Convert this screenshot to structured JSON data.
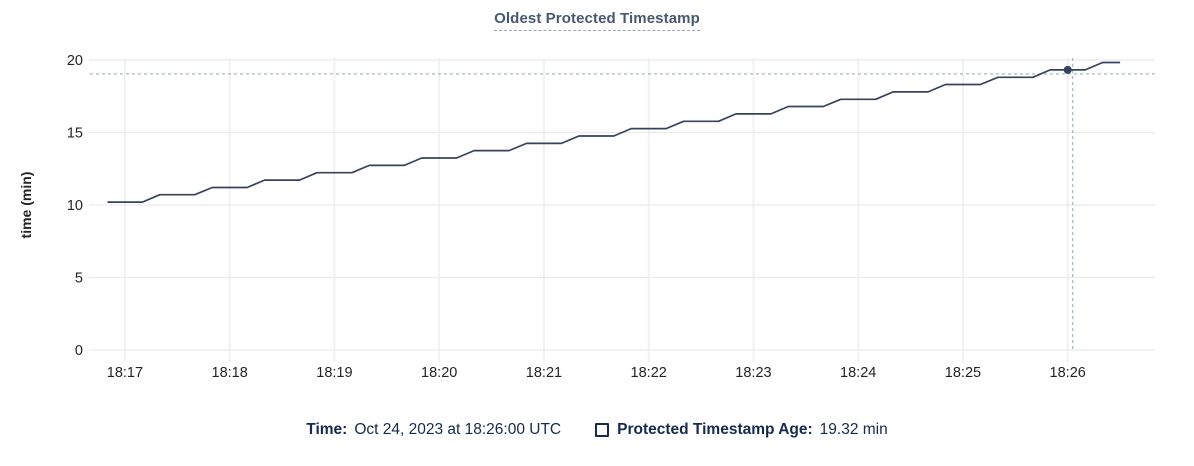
{
  "chart": {
    "title": "Oldest Protected Timestamp",
    "ylabel": "time (min)"
  },
  "legend": {
    "time_label": "Time:",
    "time_value": "Oct 24, 2023 at 18:26:00 UTC",
    "series_label": "Protected Timestamp Age:",
    "series_value": "19.32 min"
  },
  "colors": {
    "line": "#36435c",
    "title": "#475872",
    "title_underline": "#96a5ba",
    "legend_text": "#152a4c",
    "crosshair": "#a3b8c2",
    "grid_horizontal": "#ebebeb",
    "grid_vertical": "#f1f1f1",
    "tick_text": "#242424",
    "background": "#ffffff"
  },
  "chart_data": {
    "type": "line",
    "title": "Oldest Protected Timestamp",
    "xlabel": "",
    "ylabel": "time (min)",
    "ylim": [
      0,
      20
    ],
    "y_ticks": [
      0,
      5,
      10,
      15,
      20
    ],
    "x_ticks": [
      "18:17",
      "18:18",
      "18:19",
      "18:20",
      "18:21",
      "18:22",
      "18:23",
      "18:24",
      "18:25",
      "18:26"
    ],
    "x_domain": [
      "18:16:40",
      "18:26:50"
    ],
    "grid": true,
    "legend_position": "bottom",
    "series": [
      {
        "name": "Protected Timestamp Age",
        "unit": "min",
        "x": [
          "18:16:50",
          "18:17:00",
          "18:17:10",
          "18:17:20",
          "18:17:30",
          "18:17:40",
          "18:17:50",
          "18:18:00",
          "18:18:10",
          "18:18:20",
          "18:18:30",
          "18:18:40",
          "18:18:50",
          "18:19:00",
          "18:19:10",
          "18:19:20",
          "18:19:30",
          "18:19:40",
          "18:19:50",
          "18:20:00",
          "18:20:10",
          "18:20:20",
          "18:20:30",
          "18:20:40",
          "18:20:50",
          "18:21:00",
          "18:21:10",
          "18:21:20",
          "18:21:30",
          "18:21:40",
          "18:21:50",
          "18:22:00",
          "18:22:10",
          "18:22:20",
          "18:22:30",
          "18:22:40",
          "18:22:50",
          "18:23:00",
          "18:23:10",
          "18:23:20",
          "18:23:30",
          "18:23:40",
          "18:23:50",
          "18:24:00",
          "18:24:10",
          "18:24:20",
          "18:24:30",
          "18:24:40",
          "18:24:50",
          "18:25:00",
          "18:25:10",
          "18:25:20",
          "18:25:30",
          "18:25:40",
          "18:25:50",
          "18:26:00",
          "18:26:10",
          "18:26:20",
          "18:26:30"
        ],
        "values": [
          10.2,
          10.2,
          10.2,
          10.71,
          10.71,
          10.71,
          11.21,
          11.21,
          11.21,
          11.72,
          11.72,
          11.72,
          12.23,
          12.23,
          12.23,
          12.73,
          12.73,
          12.73,
          13.24,
          13.24,
          13.24,
          13.75,
          13.75,
          13.75,
          14.25,
          14.25,
          14.25,
          14.76,
          14.76,
          14.76,
          15.27,
          15.27,
          15.27,
          15.77,
          15.77,
          15.77,
          16.28,
          16.28,
          16.28,
          16.79,
          16.79,
          16.79,
          17.29,
          17.29,
          17.29,
          17.8,
          17.8,
          17.8,
          18.31,
          18.31,
          18.31,
          18.81,
          18.81,
          18.81,
          19.32,
          19.32,
          19.32,
          19.83,
          19.83
        ]
      }
    ],
    "hover_point": {
      "x": "18:26:00",
      "y": 19.32
    }
  }
}
